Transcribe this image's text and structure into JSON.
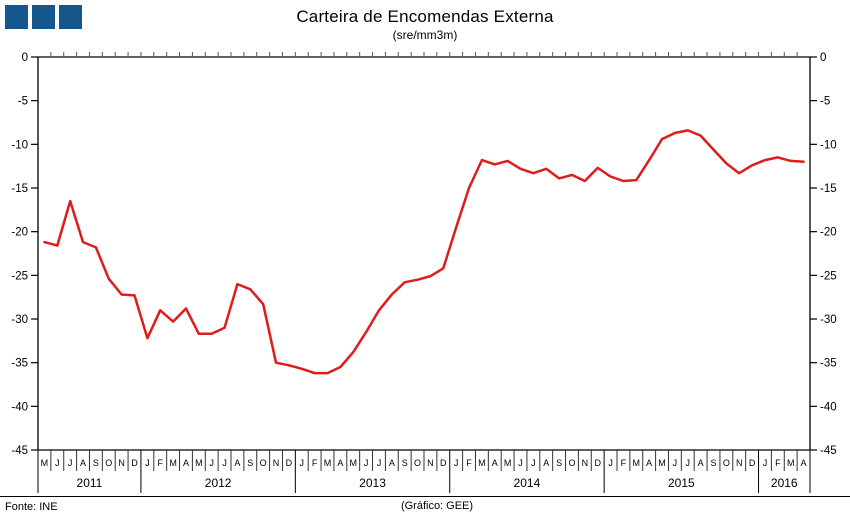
{
  "header": {
    "title": "Carteira de Encomendas Externa",
    "subtitle": "(sre/mm3m)",
    "logo_squares": 3
  },
  "footer": {
    "source": "Fonte: INE",
    "credit": "(Gráfico: GEE)"
  },
  "colors": {
    "line": "#df1c1c",
    "logo_blue": "#15568d",
    "axis": "#000000",
    "separator": "#333333"
  },
  "chart_data": {
    "type": "line",
    "title": "Carteira de Encomendas Externa",
    "subtitle": "(sre/mm3m)",
    "xlabel": "",
    "ylabel": "",
    "ylim": [
      -45,
      0
    ],
    "y_ticks": [
      0,
      -5,
      -10,
      -15,
      -20,
      -25,
      -30,
      -35,
      -40,
      -45
    ],
    "grid": false,
    "legend_position": "none",
    "x_month_labels": [
      "M",
      "J",
      "J",
      "A",
      "S",
      "O",
      "N",
      "D",
      "J",
      "F",
      "M",
      "A",
      "M",
      "J",
      "J",
      "A",
      "S",
      "O",
      "N",
      "D",
      "J",
      "F",
      "M",
      "A",
      "M",
      "J",
      "J",
      "A",
      "S",
      "O",
      "N",
      "D",
      "J",
      "F",
      "M",
      "A",
      "M",
      "J",
      "J",
      "A",
      "S",
      "O",
      "N",
      "D",
      "J",
      "F",
      "M",
      "A",
      "M",
      "J",
      "J",
      "A",
      "S",
      "O",
      "N",
      "D",
      "J",
      "F",
      "M",
      "A"
    ],
    "years": [
      {
        "label": "2011",
        "months": 8
      },
      {
        "label": "2012",
        "months": 12
      },
      {
        "label": "2013",
        "months": 12
      },
      {
        "label": "2014",
        "months": 12
      },
      {
        "label": "2015",
        "months": 12
      },
      {
        "label": "2016",
        "months": 4
      }
    ],
    "series": [
      {
        "name": "Carteira de Encomendas Externa (sre/mm3m)",
        "color": "#df1c1c",
        "values": [
          -21.2,
          -21.6,
          -16.5,
          -21.2,
          -21.8,
          -25.4,
          -27.2,
          -27.3,
          -32.2,
          -29.0,
          -30.3,
          -28.8,
          -31.7,
          -31.7,
          -31.0,
          -26.0,
          -26.6,
          -28.3,
          -35.0,
          -35.3,
          -35.7,
          -36.2,
          -36.2,
          -35.5,
          -33.8,
          -31.5,
          -29.0,
          -27.2,
          -25.8,
          -25.5,
          -25.1,
          -24.2,
          -19.5,
          -15.0,
          -11.8,
          -12.3,
          -11.9,
          -12.8,
          -13.3,
          -12.8,
          -13.9,
          -13.5,
          -14.2,
          -12.7,
          -13.7,
          -14.2,
          -14.1,
          -11.8,
          -9.4,
          -8.7,
          -8.4,
          -9.0,
          -10.6,
          -12.2,
          -13.3,
          -12.4,
          -11.8,
          -11.5,
          -11.9,
          -12.0
        ]
      }
    ]
  }
}
